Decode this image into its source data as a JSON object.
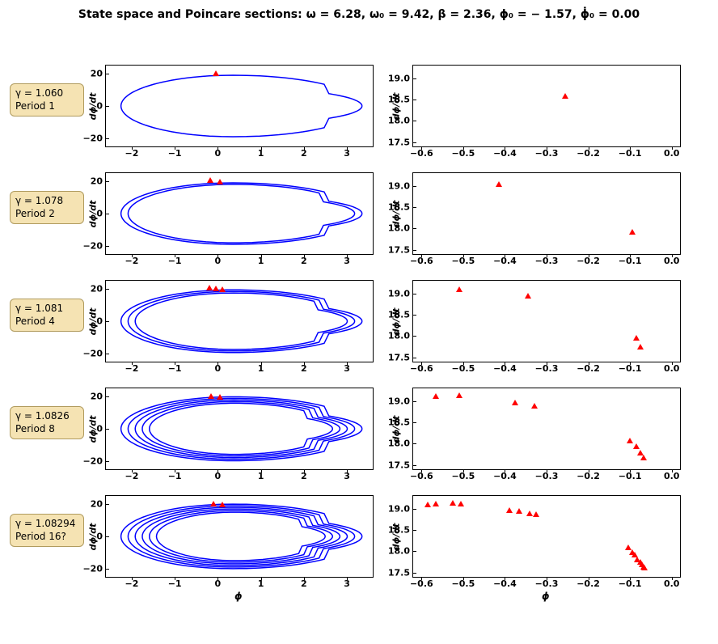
{
  "title": "State space and Poincare sections:   ω = 6.28,  ω₀ = 9.42,  β = 2.36,   ϕ₀ = − 1.57, ϕ̇₀ = 0.00",
  "colors": {
    "line": "#0000ff",
    "marker": "#ff0000",
    "label_bg": "#f5e3b3",
    "label_border": "#b09b5e",
    "axis": "#000000",
    "background": "#ffffff"
  },
  "axis_labels": {
    "xlabel": "ϕ",
    "ylabel": "dϕ/dt"
  },
  "font_sizes": {
    "title": 14,
    "label_box": 12,
    "axis_label": 12,
    "tick": 11
  },
  "left_axes": {
    "xlim": [
      -2.6,
      3.6
    ],
    "ylim": [
      -25,
      25
    ],
    "xticks": [
      -2,
      -1,
      0,
      1,
      2,
      3
    ],
    "yticks": [
      -20,
      0,
      20
    ]
  },
  "right_axes": {
    "xlim": [
      -0.62,
      0.02
    ],
    "ylim": [
      17.4,
      19.3
    ],
    "xticks": [
      -0.6,
      -0.5,
      -0.4,
      -0.3,
      -0.2,
      -0.1,
      0.0
    ],
    "yticks": [
      17.5,
      18.0,
      18.5,
      19.0
    ]
  },
  "marker_style": "triangle",
  "line_width": 1.5,
  "rows": [
    {
      "label_line1": "γ = 1.060",
      "label_line2": "Period 1",
      "orbit_scale": 1.0,
      "orbit_count": 1,
      "left_markers": [
        [
          -0.05,
          18.5
        ]
      ],
      "poincare": [
        [
          -0.255,
          18.52
        ]
      ]
    },
    {
      "label_line1": "γ = 1.078",
      "label_line2": "Period 2",
      "orbit_scale": 1.0,
      "orbit_count": 2,
      "left_markers": [
        [
          -0.18,
          18.8
        ],
        [
          0.05,
          18.2
        ]
      ],
      "poincare": [
        [
          -0.415,
          18.98
        ],
        [
          -0.095,
          17.85
        ]
      ]
    },
    {
      "label_line1": "γ = 1.081",
      "label_line2": "Period 4",
      "orbit_scale": 1.02,
      "orbit_count": 3,
      "left_markers": [
        [
          -0.2,
          18.9
        ],
        [
          -0.05,
          18.7
        ],
        [
          0.1,
          18.0
        ]
      ],
      "poincare": [
        [
          -0.51,
          19.04
        ],
        [
          -0.345,
          18.88
        ],
        [
          -0.085,
          17.9
        ],
        [
          -0.075,
          17.68
        ]
      ]
    },
    {
      "label_line1": "γ = 1.0826",
      "label_line2": "Period 8",
      "orbit_scale": 1.04,
      "orbit_count": 5,
      "left_markers": [
        [
          -0.15,
          18.5
        ],
        [
          0.05,
          18.2
        ]
      ],
      "poincare": [
        [
          -0.565,
          19.05
        ],
        [
          -0.51,
          19.07
        ],
        [
          -0.375,
          18.9
        ],
        [
          -0.33,
          18.82
        ],
        [
          -0.1,
          18.0
        ],
        [
          -0.085,
          17.88
        ],
        [
          -0.075,
          17.72
        ],
        [
          -0.068,
          17.6
        ]
      ]
    },
    {
      "label_line1": "γ = 1.08294",
      "label_line2": "Period 16?",
      "orbit_scale": 1.05,
      "orbit_count": 6,
      "left_markers": [
        [
          -0.1,
          18.5
        ],
        [
          0.1,
          18.0
        ]
      ],
      "poincare": [
        [
          -0.585,
          19.04
        ],
        [
          -0.565,
          19.06
        ],
        [
          -0.525,
          19.07
        ],
        [
          -0.505,
          19.05
        ],
        [
          -0.39,
          18.91
        ],
        [
          -0.365,
          18.88
        ],
        [
          -0.34,
          18.83
        ],
        [
          -0.325,
          18.8
        ],
        [
          -0.105,
          18.02
        ],
        [
          -0.095,
          17.92
        ],
        [
          -0.088,
          17.85
        ],
        [
          -0.082,
          17.75
        ],
        [
          -0.075,
          17.68
        ],
        [
          -0.072,
          17.62
        ],
        [
          -0.068,
          17.58
        ],
        [
          -0.065,
          17.55
        ]
      ]
    }
  ]
}
